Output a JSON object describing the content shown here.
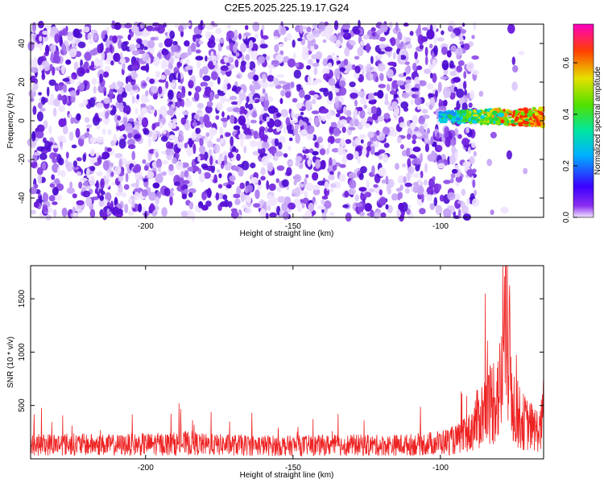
{
  "title": "C2E5.2025.225.19.17.G24",
  "colors": {
    "snr_line": "#ee2222",
    "spec_bg_low": "#e4d4fa",
    "spec_bg_high": "#6a12d9",
    "signal_core": "#1fd24a"
  },
  "colorbar": {
    "label": "Normalized spectral amplitude",
    "ticks": [
      "0.0",
      "0.2",
      "0.4",
      "0.6"
    ],
    "tick_values": [
      0.0,
      0.2,
      0.4,
      0.6
    ],
    "range": [
      0.0,
      0.75
    ],
    "colormap": "rainbow (violet-blue-cyan-green-yellow-red-magenta)"
  },
  "chart_data": [
    {
      "type": "heatmap",
      "xlabel": "Height of straight line (km)",
      "ylabel": "Frequency (Hz)",
      "xlim": [
        -239,
        -65
      ],
      "ylim": [
        -50,
        50
      ],
      "xticks": [
        -200,
        -150,
        -100
      ],
      "xtick_labels": [
        "-200",
        "-150",
        "-100"
      ],
      "yticks": [
        -40,
        -20,
        0,
        20,
        40
      ],
      "ytick_labels": [
        "-40",
        "-20",
        "0",
        "20",
        "40"
      ],
      "noise_level": 0.05,
      "noise_extent_x": [
        -239,
        -88
      ],
      "signal": {
        "x_range": [
          -100,
          -65
        ],
        "freq_center": 2,
        "freq_width": 8,
        "peak_amplitude": 0.55
      }
    },
    {
      "type": "line",
      "xlabel": "Height of straight line (km)",
      "ylabel": "SNR (10 * v/v)",
      "xlim": [
        -239,
        -65
      ],
      "ylim": [
        0,
        1810
      ],
      "xticks": [
        -200,
        -150,
        -100
      ],
      "xtick_labels": [
        "-200",
        "-150",
        "-100"
      ],
      "yticks": [
        500,
        1000,
        1500
      ],
      "ytick_labels": [
        "500",
        "1000",
        "1500"
      ],
      "series": [
        {
          "x": [
            -239,
            -230,
            -220,
            -210,
            -200,
            -190,
            -185,
            -180,
            -170,
            -160,
            -150,
            -140,
            -130,
            -120,
            -110,
            -105,
            -100,
            -95,
            -92,
            -90,
            -88,
            -86,
            -84,
            -82,
            -80,
            -79,
            -78,
            -77,
            -76,
            -75,
            -74,
            -72,
            -70,
            -68,
            -66,
            -65
          ],
          "y": [
            180,
            200,
            190,
            185,
            195,
            200,
            210,
            190,
            185,
            180,
            175,
            180,
            185,
            180,
            190,
            200,
            220,
            250,
            300,
            350,
            500,
            600,
            700,
            800,
            900,
            1100,
            1810,
            1600,
            1000,
            700,
            600,
            500,
            450,
            400,
            380,
            700
          ]
        }
      ]
    }
  ]
}
